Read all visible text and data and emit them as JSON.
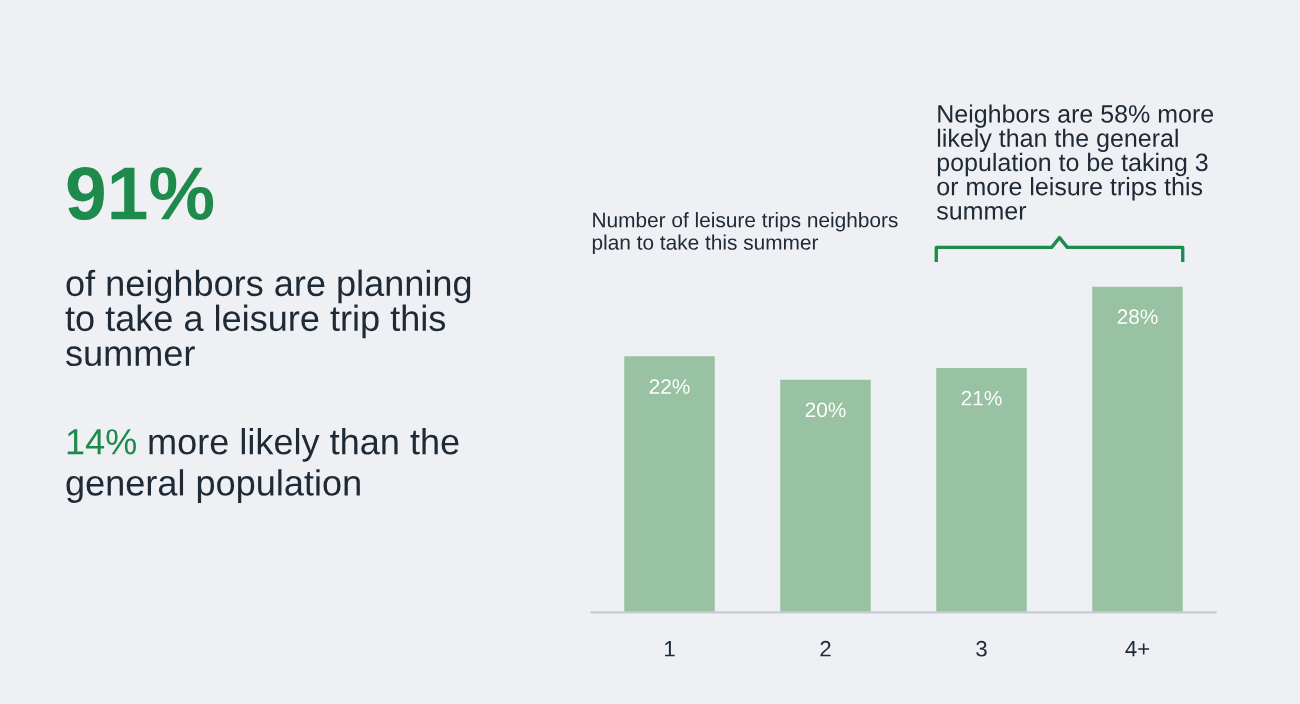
{
  "chart_data": [
    {
      "type": "other",
      "title": "91%",
      "subtitle": "of neighbors are planning\nto take a leisure trip this\nsummer",
      "annotations": [
        "14% more likely than the\ngeneral population"
      ]
    },
    {
      "type": "bar",
      "title": "Number of leisure trips neighbors\nplan to take this summer",
      "categories": [
        "1",
        "2",
        "3",
        "4+"
      ],
      "values": [
        22,
        20,
        21,
        28
      ],
      "color": "#99c2a2",
      "value_labels": [
        "22%",
        "20%",
        "21%",
        "28%"
      ],
      "tick_labels": "x",
      "grid": false,
      "annotations": [
        "Neighbors are 58% more\nlikely than the general\npopulation to be taking 3\nor more leisure trips this\nsummer"
      ]
    }
  ]
}
